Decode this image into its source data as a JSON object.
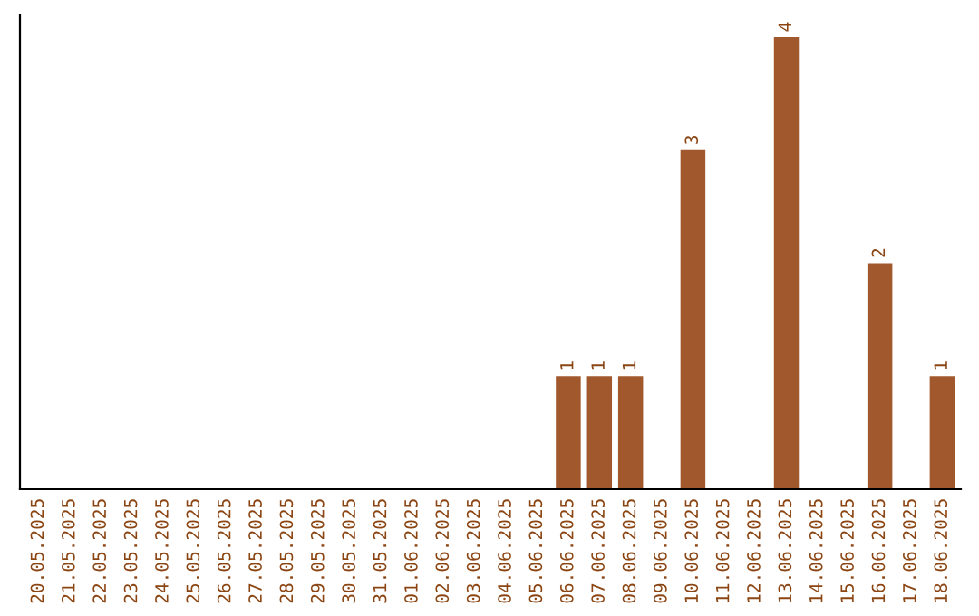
{
  "chart_data": {
    "type": "bar",
    "categories": [
      "20.05.2025",
      "21.05.2025",
      "22.05.2025",
      "23.05.2025",
      "24.05.2025",
      "25.05.2025",
      "26.05.2025",
      "27.05.2025",
      "28.05.2025",
      "29.05.2025",
      "30.05.2025",
      "31.05.2025",
      "01.06.2025",
      "02.06.2025",
      "03.06.2025",
      "04.06.2025",
      "05.06.2025",
      "06.06.2025",
      "07.06.2025",
      "08.06.2025",
      "09.06.2025",
      "10.06.2025",
      "11.06.2025",
      "12.06.2025",
      "13.06.2025",
      "14.06.2025",
      "15.06.2025",
      "16.06.2025",
      "17.06.2025",
      "18.06.2025"
    ],
    "values": [
      null,
      null,
      null,
      null,
      null,
      null,
      null,
      null,
      null,
      null,
      null,
      null,
      null,
      null,
      null,
      null,
      null,
      1,
      1,
      1,
      null,
      3,
      null,
      null,
      4,
      null,
      null,
      2,
      null,
      1
    ],
    "color": "#a0582c",
    "data_labels": true,
    "tick_labels": "x",
    "grid": false
  }
}
